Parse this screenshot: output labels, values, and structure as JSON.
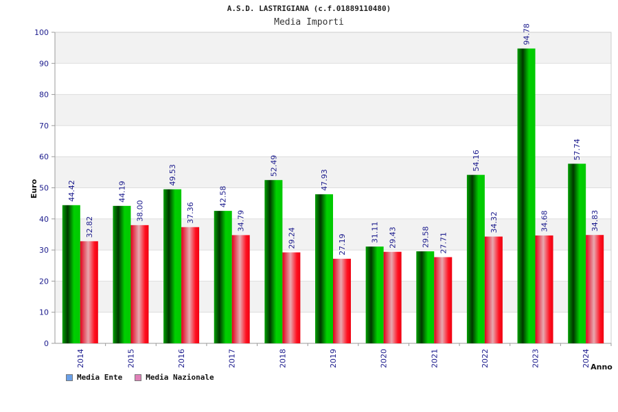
{
  "header": {
    "title": "A.S.D. LASTRIGIANA (c.f.01889110480)",
    "subtitle": "Media Importi"
  },
  "legend": [
    {
      "label": "Media Ente",
      "color": "#6aa0e8"
    },
    {
      "label": "Media Nazionale",
      "color": "#e080b8"
    }
  ],
  "chart_data": {
    "type": "bar",
    "title": "A.S.D. LASTRIGIANA (c.f.01889110480)",
    "subtitle": "Media Importi",
    "xlabel": "Anno",
    "ylabel": "Euro",
    "ylim": [
      0,
      100
    ],
    "yticks": [
      0,
      10,
      20,
      30,
      40,
      50,
      60,
      70,
      80,
      90,
      100
    ],
    "grid": true,
    "legend_position": "bottom-left",
    "categories": [
      "2014",
      "2015",
      "2016",
      "2017",
      "2018",
      "2019",
      "2020",
      "2021",
      "2022",
      "2023",
      "2024"
    ],
    "series": [
      {
        "name": "Media Ente",
        "color": "#00c000",
        "values": [
          44.42,
          44.19,
          49.53,
          42.58,
          52.49,
          47.93,
          31.11,
          29.58,
          54.16,
          94.78,
          57.74
        ],
        "labels": [
          "44.42",
          "44.19",
          "49.53",
          "42.58",
          "52.49",
          "47.93",
          "31.11",
          "29.58",
          "54.16",
          "94.78",
          "57.74"
        ]
      },
      {
        "name": "Media Nazionale",
        "color": "#ff0010",
        "values": [
          32.82,
          38.0,
          37.36,
          34.79,
          29.24,
          27.19,
          29.43,
          27.71,
          34.32,
          34.68,
          34.83
        ],
        "labels": [
          "32.82",
          "38.00",
          "37.36",
          "34.79",
          "29.24",
          "27.19",
          "29.43",
          "27.71",
          "34.32",
          "34.68",
          "34.83"
        ]
      }
    ]
  }
}
